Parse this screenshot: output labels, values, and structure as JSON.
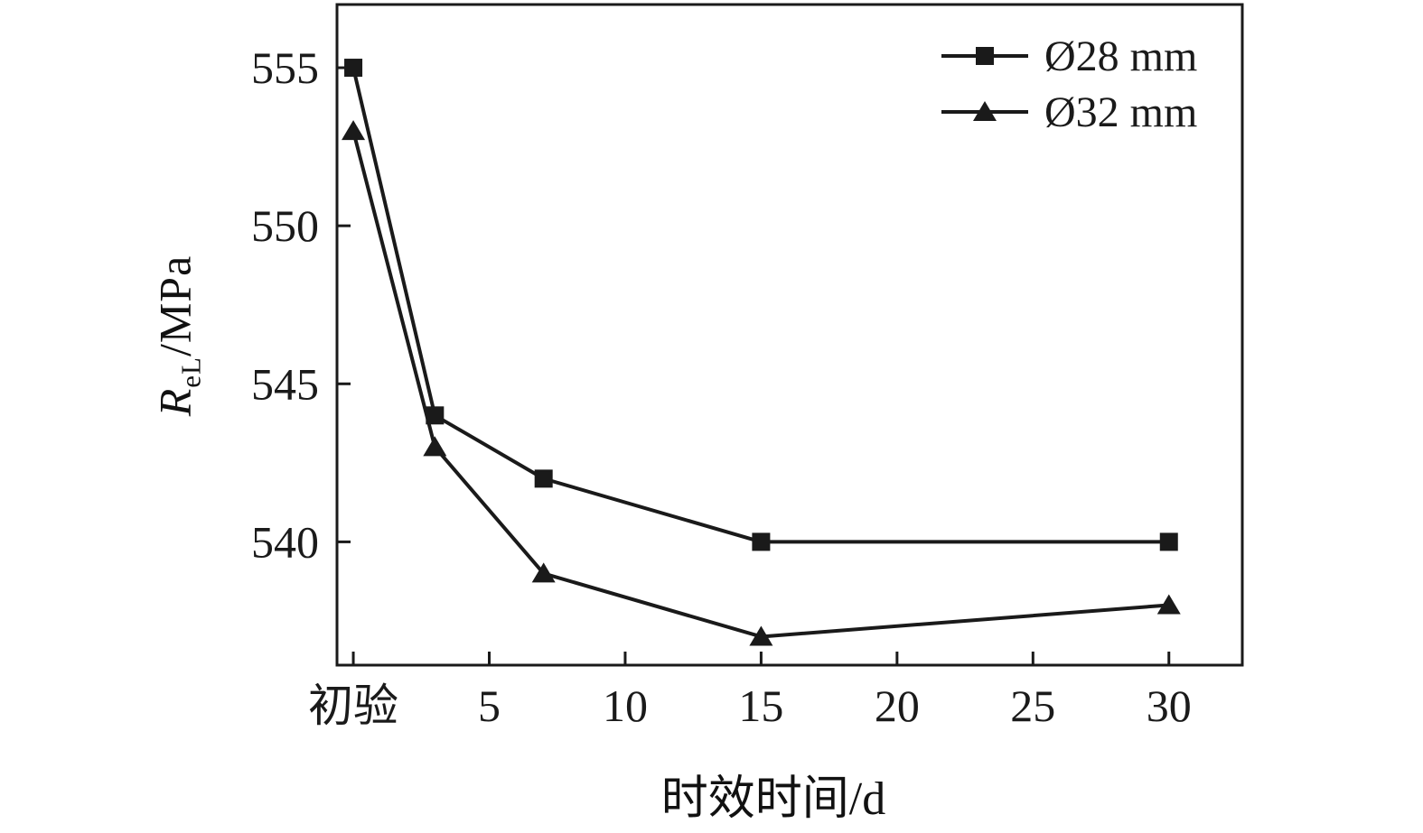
{
  "chart_data": {
    "type": "line",
    "title": "",
    "xlabel": "时效时间/d",
    "ylabel_main": "R",
    "ylabel_sub": "eL",
    "ylabel_unit": "/MPa",
    "x": [
      0,
      3,
      7,
      15,
      30
    ],
    "series": [
      {
        "name": "Ø28 mm",
        "marker": "square",
        "values": [
          555,
          544,
          542,
          540,
          540
        ]
      },
      {
        "name": "Ø32 mm",
        "marker": "triangle",
        "values": [
          553,
          543,
          539,
          537,
          538
        ]
      }
    ],
    "x_ticks": [
      {
        "value": 0,
        "label": "初验"
      },
      {
        "value": 5,
        "label": "5"
      },
      {
        "value": 10,
        "label": "10"
      },
      {
        "value": 15,
        "label": "15"
      },
      {
        "value": 20,
        "label": "20"
      },
      {
        "value": 25,
        "label": "25"
      },
      {
        "value": 30,
        "label": "30"
      }
    ],
    "y_ticks": [
      540,
      545,
      550,
      555
    ],
    "xlim": [
      -0.6,
      32.7
    ],
    "ylim": [
      536.1,
      557.0
    ],
    "grid": false,
    "legend_position": "top-right",
    "line_color": "#1a1a1a",
    "background_color": "#ffffff"
  }
}
